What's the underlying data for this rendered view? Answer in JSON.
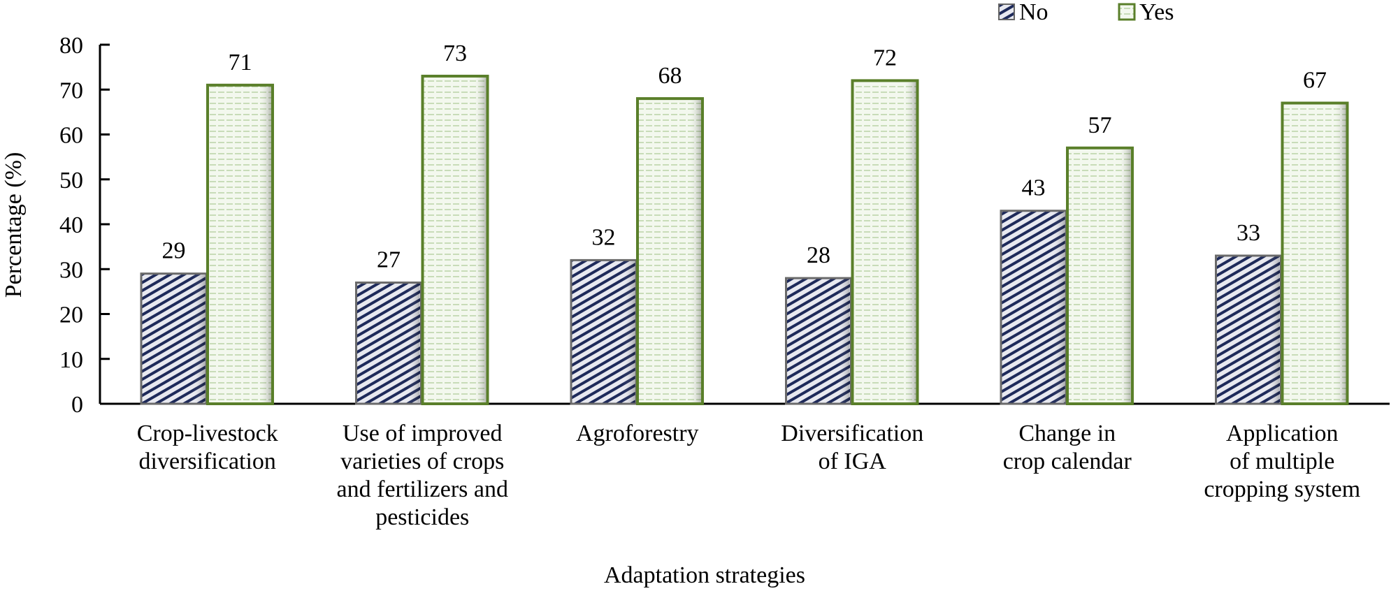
{
  "chart_data": {
    "type": "bar",
    "title": "",
    "xlabel": "Adaptation strategies",
    "ylabel": "Percentage (%)",
    "ylim": [
      0,
      80
    ],
    "yticks": [
      0,
      10,
      20,
      30,
      40,
      50,
      60,
      70,
      80
    ],
    "grid": false,
    "legend_position": "top-right",
    "categories": [
      [
        "Crop-livestock",
        "diversification"
      ],
      [
        "Use of improved",
        "varieties of crops",
        "and fertilizers and",
        "pesticides"
      ],
      [
        "Agroforestry"
      ],
      [
        "Diversification",
        "of IGA"
      ],
      [
        "Change in",
        "crop calendar"
      ],
      [
        "Application",
        "of multiple",
        "cropping system"
      ]
    ],
    "series": [
      {
        "name": "No",
        "values": [
          29,
          27,
          32,
          28,
          43,
          33
        ],
        "color": "#4a4f6a"
      },
      {
        "name": "Yes",
        "values": [
          71,
          73,
          68,
          72,
          57,
          67
        ],
        "color": "#5a7f2a"
      }
    ]
  }
}
